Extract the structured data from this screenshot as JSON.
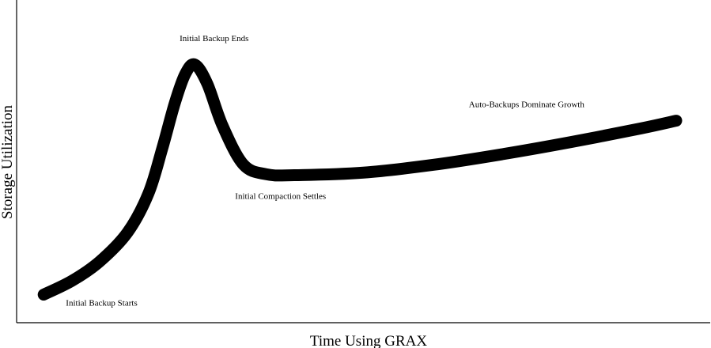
{
  "chart_data": {
    "type": "line",
    "title": "",
    "xlabel": "Time Using GRAX",
    "ylabel": "Storage Utilization",
    "grid": false,
    "x_ticks_visible": false,
    "y_ticks_visible": false,
    "xlim": [
      0,
      100
    ],
    "ylim": [
      0,
      100
    ],
    "series": [
      {
        "color": "#000000",
        "x": [
          3.9,
          8,
          12,
          16,
          19,
          21,
          22.8,
          24.3,
          25.7,
          27.5,
          29.7,
          32.7,
          36,
          40,
          50,
          60,
          70,
          80,
          90,
          95.1
        ],
        "y": [
          8.7,
          13,
          19,
          28,
          40,
          54,
          68,
          77,
          80,
          74,
          61,
          49,
          46,
          45.7,
          46.5,
          48.9,
          52.2,
          56,
          60.2,
          62.6
        ]
      }
    ],
    "annotations": [
      {
        "text": "Initial Backup Starts",
        "x": 7.1,
        "y": 5.3
      },
      {
        "text": "Initial Backup Ends",
        "x": 23.5,
        "y": 87.3
      },
      {
        "text": "Initial Compaction Settles",
        "x": 31.5,
        "y": 38.3
      },
      {
        "text": "Auto-Backups Dominate Growth",
        "x": 65.2,
        "y": 66.8
      }
    ]
  }
}
